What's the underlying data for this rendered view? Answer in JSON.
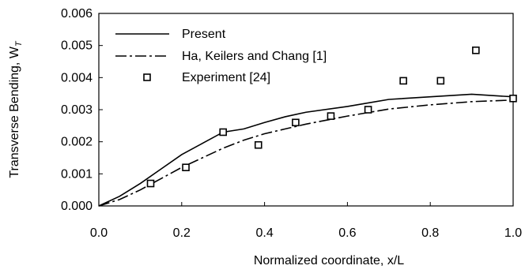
{
  "chart_data": {
    "type": "line",
    "title": "",
    "xlabel": "Normalized coordinate, x/L",
    "ylabel": "Transverse Bending, W",
    "ylabel_sub": "T",
    "xlim": [
      0.0,
      1.0
    ],
    "ylim": [
      0.0,
      0.006
    ],
    "xticks": [
      "0.0",
      "0.2",
      "0.4",
      "0.6",
      "0.8",
      "1.0"
    ],
    "yticks": [
      "0.000",
      "0.001",
      "0.002",
      "0.003",
      "0.004",
      "0.005",
      "0.006"
    ],
    "grid": false,
    "legend_position": "top-left",
    "series": [
      {
        "name": "Present",
        "style": "solid",
        "x": [
          0.0,
          0.05,
          0.1,
          0.15,
          0.2,
          0.25,
          0.3,
          0.35,
          0.4,
          0.45,
          0.5,
          0.6,
          0.7,
          0.8,
          0.9,
          1.0
        ],
        "y": [
          0.0,
          0.0003,
          0.0007,
          0.00115,
          0.0016,
          0.00195,
          0.0023,
          0.0024,
          0.0026,
          0.00278,
          0.00292,
          0.0031,
          0.00332,
          0.0034,
          0.00348,
          0.0034
        ]
      },
      {
        "name": "Ha, Keilers and Chang [1]",
        "style": "dashdot",
        "x": [
          0.0,
          0.05,
          0.1,
          0.15,
          0.2,
          0.25,
          0.3,
          0.35,
          0.4,
          0.45,
          0.5,
          0.6,
          0.7,
          0.8,
          0.9,
          1.0
        ],
        "y": [
          0.0,
          0.0002,
          0.0005,
          0.00085,
          0.0012,
          0.0015,
          0.0018,
          0.00205,
          0.00225,
          0.0024,
          0.00255,
          0.0028,
          0.00302,
          0.00315,
          0.00325,
          0.0033
        ]
      },
      {
        "name": "Experiment [24]",
        "style": "marker-square",
        "x": [
          0.125,
          0.21,
          0.3,
          0.385,
          0.475,
          0.56,
          0.65,
          0.735,
          0.825,
          0.91,
          1.0
        ],
        "y": [
          0.0007,
          0.0012,
          0.0023,
          0.0019,
          0.0026,
          0.0028,
          0.003,
          0.0039,
          0.0039,
          0.00485,
          0.00335
        ]
      }
    ]
  }
}
